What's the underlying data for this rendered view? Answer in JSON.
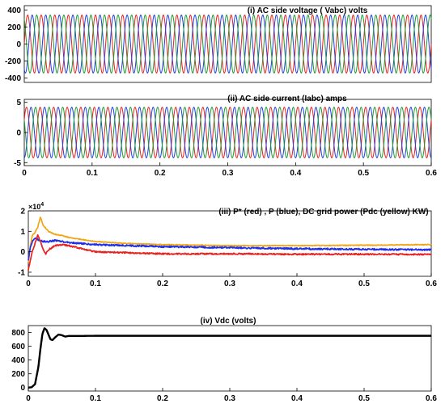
{
  "chart_data": [
    {
      "type": "line",
      "title": "(i) AC side voltage ( Vabc) volts",
      "xlim": [
        0,
        0.6
      ],
      "ylim": [
        -450,
        450
      ],
      "xticks": [],
      "yticks": [
        -400,
        -200,
        0,
        200,
        400
      ],
      "grid": false,
      "series": [
        {
          "color": "#e8211e",
          "waveform": "sine",
          "amplitude": 340,
          "frequency_hz": 50,
          "phase_deg": 0,
          "x_start": 0,
          "x_end": 0.6
        },
        {
          "color": "#1f3fe0",
          "waveform": "sine",
          "amplitude": 340,
          "frequency_hz": 50,
          "phase_deg": -120,
          "x_start": 0,
          "x_end": 0.6
        },
        {
          "color": "#1e9a30",
          "waveform": "sine",
          "amplitude": 340,
          "frequency_hz": 50,
          "phase_deg": 120,
          "x_start": 0,
          "x_end": 0.6
        }
      ]
    },
    {
      "type": "line",
      "title": "(ii) AC side current (Iabc) amps",
      "xlim": [
        0,
        0.6
      ],
      "ylim": [
        -5.5,
        5.5
      ],
      "xticks": [
        0,
        0.1,
        0.2,
        0.3,
        0.4,
        0.5,
        0.6
      ],
      "yticks": [
        -5,
        0,
        5
      ],
      "grid": false,
      "series": [
        {
          "color": "#e8211e",
          "waveform": "sine",
          "amplitude": 4.2,
          "frequency_hz": 50,
          "phase_deg": 30,
          "x_start": 0,
          "x_end": 0.6
        },
        {
          "color": "#1f3fe0",
          "waveform": "sine",
          "amplitude": 4.2,
          "frequency_hz": 50,
          "phase_deg": -90,
          "x_start": 0,
          "x_end": 0.6
        },
        {
          "color": "#1e9a30",
          "waveform": "sine",
          "amplitude": 4.2,
          "frequency_hz": 50,
          "phase_deg": 150,
          "x_start": 0,
          "x_end": 0.6
        }
      ]
    },
    {
      "type": "line",
      "title": "(iii) P* (red) ,  P (blue), DC grid power (Pdc (yellow) KW)",
      "xlim": [
        0,
        0.6
      ],
      "ylim": [
        -1.2,
        2
      ],
      "y_exponent_base": "×10",
      "y_exponent_power": "4",
      "xticks": [
        0,
        0.1,
        0.2,
        0.3,
        0.4,
        0.5,
        0.6
      ],
      "yticks": [
        -1,
        0,
        1,
        2
      ],
      "grid": false,
      "series": [
        {
          "color": "#f2a516",
          "noise": 0.04,
          "x": [
            0,
            0.003,
            0.006,
            0.01,
            0.014,
            0.018,
            0.022,
            0.03,
            0.04,
            0.05,
            0.06,
            0.08,
            0.1,
            0.15,
            0.2,
            0.3,
            0.4,
            0.5,
            0.6
          ],
          "y": [
            -0.5,
            0.3,
            0.8,
            0.95,
            1.2,
            1.7,
            1.3,
            1.0,
            0.85,
            0.8,
            0.7,
            0.6,
            0.5,
            0.4,
            0.35,
            0.3,
            0.3,
            0.32,
            0.35
          ]
        },
        {
          "color": "#1f2ee8",
          "noise": 0.08,
          "x": [
            0,
            0.003,
            0.006,
            0.01,
            0.014,
            0.018,
            0.022,
            0.03,
            0.04,
            0.05,
            0.06,
            0.08,
            0.1,
            0.15,
            0.2,
            0.3,
            0.4,
            0.5,
            0.6
          ],
          "y": [
            -0.4,
            0.2,
            0.5,
            0.65,
            0.6,
            0.55,
            0.5,
            0.5,
            0.55,
            0.5,
            0.45,
            0.4,
            0.35,
            0.3,
            0.25,
            0.2,
            0.15,
            0.12,
            0.1
          ]
        },
        {
          "color": "#e8211e",
          "noise": 0.07,
          "x": [
            0,
            0.003,
            0.006,
            0.01,
            0.014,
            0.018,
            0.022,
            0.026,
            0.03,
            0.04,
            0.05,
            0.06,
            0.08,
            0.1,
            0.15,
            0.2,
            0.3,
            0.4,
            0.5,
            0.6
          ],
          "y": [
            -0.9,
            -0.4,
            0.0,
            0.4,
            0.8,
            0.5,
            0.1,
            -0.1,
            0.1,
            0.3,
            0.35,
            0.3,
            0.15,
            0.0,
            -0.05,
            -0.1,
            -0.1,
            -0.12,
            -0.12,
            -0.13
          ]
        }
      ]
    },
    {
      "type": "line",
      "title": "(iv) Vdc (volts)",
      "xlim": [
        0,
        0.6
      ],
      "ylim": [
        -50,
        900
      ],
      "xticks": [
        0,
        0.1,
        0.2,
        0.3,
        0.4,
        0.5,
        0.6
      ],
      "yticks": [
        0,
        200,
        400,
        600,
        800
      ],
      "grid": false,
      "series": [
        {
          "color": "#000000",
          "noise": 0,
          "x": [
            0,
            0.005,
            0.01,
            0.015,
            0.018,
            0.021,
            0.024,
            0.027,
            0.03,
            0.033,
            0.036,
            0.04,
            0.045,
            0.05,
            0.055,
            0.06,
            0.07,
            0.08,
            0.1,
            0.2,
            0.3,
            0.4,
            0.5,
            0.6
          ],
          "y": [
            0,
            5,
            50,
            300,
            560,
            780,
            860,
            840,
            770,
            700,
            690,
            730,
            770,
            760,
            740,
            750,
            750,
            750,
            752,
            752,
            752,
            752,
            752,
            752
          ]
        }
      ]
    }
  ]
}
